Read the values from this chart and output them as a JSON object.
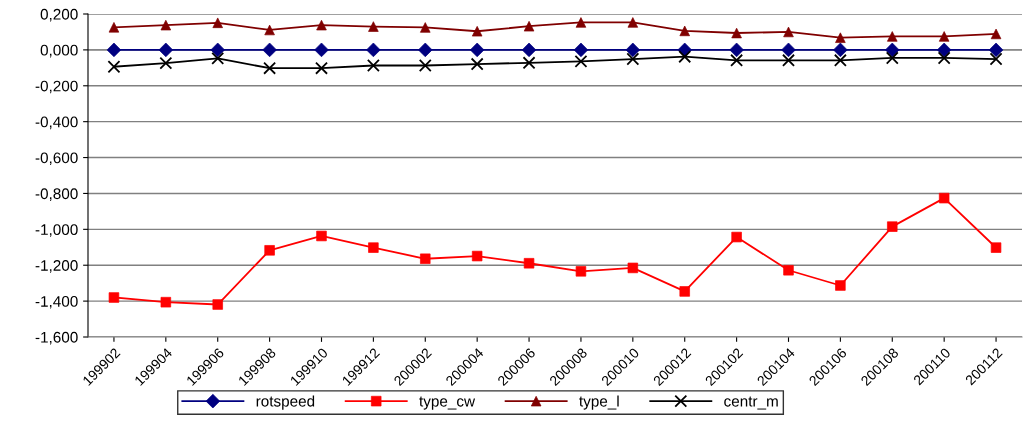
{
  "chart_data": {
    "type": "line",
    "categories": [
      "199902",
      "199904",
      "199906",
      "199908",
      "199910",
      "199912",
      "200002",
      "200004",
      "200006",
      "200008",
      "200010",
      "200012",
      "200102",
      "200104",
      "200106",
      "200108",
      "200110",
      "200112"
    ],
    "series": [
      {
        "name": "rotspeed",
        "color": "#000080",
        "marker": "diamond",
        "values": [
          0,
          0,
          0,
          0,
          0,
          0,
          0,
          0,
          0,
          0,
          0,
          0,
          0,
          0,
          0,
          0,
          0,
          0
        ]
      },
      {
        "name": "type_cw",
        "color": "#ff0000",
        "marker": "square",
        "values": [
          -1.38,
          -1.406,
          -1.419,
          -1.117,
          -1.037,
          -1.102,
          -1.164,
          -1.149,
          -1.189,
          -1.234,
          -1.215,
          -1.346,
          -1.043,
          -1.228,
          -1.313,
          -0.985,
          -0.826,
          -1.102
        ]
      },
      {
        "name": "type_l",
        "color": "#800000",
        "marker": "triangle",
        "values": [
          0.126,
          0.138,
          0.151,
          0.111,
          0.138,
          0.13,
          0.125,
          0.104,
          0.132,
          0.153,
          0.153,
          0.106,
          0.094,
          0.1,
          0.068,
          0.075,
          0.075,
          0.089
        ]
      },
      {
        "name": "centr_m",
        "color": "#000000",
        "marker": "cross",
        "values": [
          -0.094,
          -0.074,
          -0.047,
          -0.102,
          -0.102,
          -0.087,
          -0.087,
          -0.079,
          -0.072,
          -0.064,
          -0.051,
          -0.038,
          -0.058,
          -0.058,
          -0.058,
          -0.045,
          -0.045,
          -0.051
        ]
      }
    ],
    "ylim": [
      -1.6,
      0.2
    ],
    "yticks": [
      {
        "value": -1.6,
        "label": "-1,600"
      },
      {
        "value": -1.4,
        "label": "-1,400"
      },
      {
        "value": -1.2,
        "label": "-1,200"
      },
      {
        "value": -1.0,
        "label": "-1,000"
      },
      {
        "value": -0.8,
        "label": "-0,800"
      },
      {
        "value": -0.6,
        "label": "-0,600"
      },
      {
        "value": -0.4,
        "label": "-0,400"
      },
      {
        "value": -0.2,
        "label": "-0,200"
      },
      {
        "value": 0,
        "label": "0,000"
      },
      {
        "value": 0.2,
        "label": "0,200"
      }
    ],
    "grid": "y",
    "legend": "bottom",
    "line_style": "solid"
  }
}
